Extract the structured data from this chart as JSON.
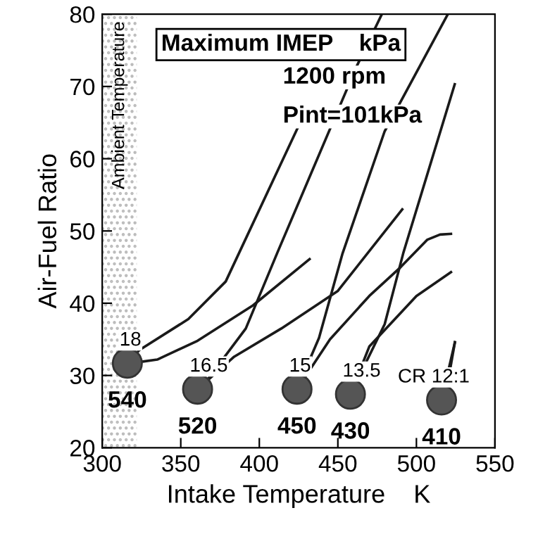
{
  "chart_data": {
    "type": "line",
    "title": "Maximum IMEP    kPa",
    "xlabel": "Intake Temperature    K",
    "ylabel": "Air-Fuel Ratio",
    "xlim": [
      300,
      550
    ],
    "ylim": [
      20,
      80
    ],
    "xticks": [
      300,
      350,
      400,
      450,
      500,
      550
    ],
    "yticks": [
      20,
      30,
      40,
      50,
      60,
      70,
      80
    ],
    "grid": false,
    "bands": [
      {
        "axis": "x",
        "from": 300,
        "to": 322,
        "label": "Ambient Temperature",
        "color": "#bbbbbb"
      }
    ],
    "series": [
      {
        "color": "#1a1a1a",
        "x": [
          316,
          323.5,
          354.8,
          378.6,
          424.7
        ],
        "values": [
          31.7,
          33.5,
          37.8,
          43,
          64.4
        ]
      },
      {
        "color": "#1a1a1a",
        "x": [
          316,
          325,
          335,
          360.7,
          396,
          432
        ],
        "values": [
          31.7,
          31.9,
          32.2,
          34.8,
          39.7,
          46.1
        ]
      },
      {
        "color": "#1a1a1a",
        "x": [
          360.7,
          367.6,
          391.4,
          411.3,
          462,
          478
        ],
        "values": [
          28.1,
          29.6,
          36.5,
          46.9,
          72.8,
          80
        ]
      },
      {
        "color": "#1a1a1a",
        "x": [
          360.7,
          384,
          414,
          450,
          491
        ],
        "values": [
          28.1,
          32.6,
          36.5,
          41.7,
          53
        ]
      },
      {
        "color": "#1a1a1a",
        "x": [
          424,
          438,
          453,
          479.8,
          520
        ],
        "values": [
          28.1,
          35.2,
          46.9,
          63.8,
          80
        ]
      },
      {
        "color": "#1a1a1a",
        "x": [
          424,
          445,
          470,
          490,
          507,
          515,
          522
        ],
        "values": [
          28.1,
          35,
          41,
          45,
          48.8,
          49.5,
          49.6
        ]
      },
      {
        "color": "#1a1a1a",
        "x": [
          458,
          479.8,
          491.6,
          524.4
        ],
        "values": [
          27.4,
          37.1,
          46.9,
          70.3
        ]
      },
      {
        "color": "#1a1a1a",
        "x": [
          458,
          470,
          500,
          522
        ],
        "values": [
          27.4,
          34,
          41,
          44.3
        ]
      },
      {
        "color": "#1a1a1a",
        "x": [
          516,
          524.5
        ],
        "values": [
          26.6,
          34.6
        ]
      },
      {
        "color": "#1a1a1a",
        "x": [
          518,
          524.5
        ],
        "values": [
          26.6,
          34.6
        ]
      },
      {
        "type": "scatter",
        "color": "#555555",
        "marker": "circle",
        "x": [
          316,
          360.7,
          424,
          458,
          516
        ],
        "values": [
          31.7,
          28.1,
          28.1,
          27.4,
          26.6
        ]
      }
    ],
    "annotations": [
      {
        "text": "18",
        "x": 316,
        "y": 31.7
      },
      {
        "text": "16.5",
        "x": 360.7,
        "y": 28.1
      },
      {
        "text": "15",
        "x": 424,
        "y": 28.1
      },
      {
        "text": "13.5",
        "x": 458,
        "y": 27.4
      },
      {
        "text": "CR 12:1",
        "x": 516,
        "y": 26.6
      },
      {
        "text": "540",
        "x": 316,
        "y": 31.7
      },
      {
        "text": "520",
        "x": 360.7,
        "y": 28.1
      },
      {
        "text": "450",
        "x": 424,
        "y": 28.1
      },
      {
        "text": "430",
        "x": 458,
        "y": 27.4
      },
      {
        "text": "410",
        "x": 516,
        "y": 26.6
      },
      "1200 rpm",
      "Pint=101kPa"
    ]
  }
}
